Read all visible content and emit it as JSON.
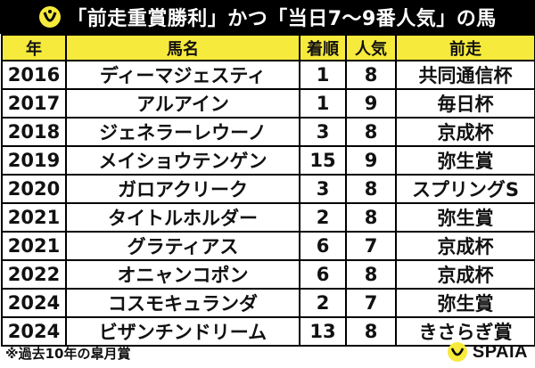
{
  "header": {
    "title": "「前走重賞勝利」かつ「当日7〜9番人気」の馬",
    "logo_icon": "horseshoe-icon",
    "accent_color": "#f6ea3c"
  },
  "table": {
    "columns": [
      "年",
      "馬名",
      "着順",
      "人気",
      "前走"
    ],
    "rows": [
      [
        "2016",
        "ディーマジェスティ",
        "1",
        "8",
        "共同通信杯"
      ],
      [
        "2017",
        "アルアイン",
        "1",
        "9",
        "毎日杯"
      ],
      [
        "2018",
        "ジェネラーレウーノ",
        "3",
        "8",
        "京成杯"
      ],
      [
        "2019",
        "メイショウテンゲン",
        "15",
        "9",
        "弥生賞"
      ],
      [
        "2020",
        "ガロアクリーク",
        "3",
        "8",
        "スプリングS"
      ],
      [
        "2021",
        "タイトルホルダー",
        "2",
        "8",
        "弥生賞"
      ],
      [
        "2021",
        "グラティアス",
        "6",
        "7",
        "京成杯"
      ],
      [
        "2022",
        "オニャンコポン",
        "6",
        "8",
        "京成杯"
      ],
      [
        "2024",
        "コスモキュランダ",
        "2",
        "7",
        "弥生賞"
      ],
      [
        "2024",
        "ビザンチンドリーム",
        "13",
        "8",
        "きさらぎ賞"
      ]
    ]
  },
  "footer": {
    "note": "※過去10年の皐月賞",
    "brand": "SPAIA",
    "brand_icon": "spaia-logo-icon"
  }
}
